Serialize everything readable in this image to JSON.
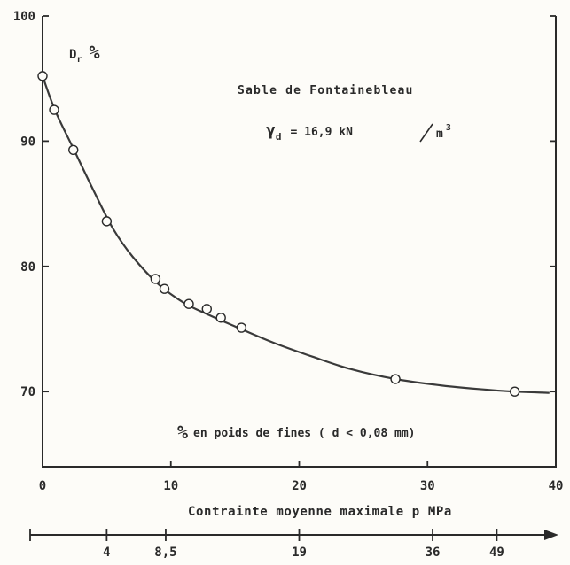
{
  "chart_data": {
    "type": "scatter",
    "ylabel": "D_r %",
    "xlabel": "% en poids de fines ( d < 0,08 mm)",
    "xlabel2": "Contrainte moyenne maximale  p  MPa",
    "annotation_title": "Sable de Fontainebleau",
    "annotation_formula": {
      "symbol": "γ",
      "sub": "d",
      "value": "= 16,9  kN",
      "unit": "m",
      "exp": "3"
    },
    "ylabel_main": "D",
    "ylabel_sub": "r",
    "ylabel_unit": "%",
    "xlabel_unit": "%",
    "xlabel_text": "en poids de fines ( d < 0,08 mm)",
    "xlim": [
      0,
      40
    ],
    "ylim": [
      64,
      100
    ],
    "x_ticks": [
      0,
      10,
      20,
      30,
      40
    ],
    "x_tick_labels": [
      "0",
      "10",
      "20",
      "30",
      "40"
    ],
    "y_ticks": [
      70,
      80,
      90,
      100
    ],
    "y_tick_labels": [
      "70",
      "80",
      "90",
      "100"
    ],
    "pressure_ticks": [
      {
        "x": 5.0,
        "label": "4"
      },
      {
        "x": 9.6,
        "label": "8,5"
      },
      {
        "x": 20.0,
        "label": "19"
      },
      {
        "x": 30.4,
        "label": "36"
      },
      {
        "x": 35.4,
        "label": "49"
      }
    ],
    "points": [
      {
        "x": 0.0,
        "y": 95.2
      },
      {
        "x": 0.9,
        "y": 92.5
      },
      {
        "x": 2.4,
        "y": 89.3
      },
      {
        "x": 5.0,
        "y": 83.6
      },
      {
        "x": 8.8,
        "y": 79.0
      },
      {
        "x": 9.5,
        "y": 78.2
      },
      {
        "x": 11.4,
        "y": 77.0
      },
      {
        "x": 12.8,
        "y": 76.6
      },
      {
        "x": 13.9,
        "y": 75.9
      },
      {
        "x": 15.5,
        "y": 75.1
      },
      {
        "x": 27.5,
        "y": 71.0
      },
      {
        "x": 36.8,
        "y": 70.0
      }
    ],
    "curve": [
      {
        "x": 0.0,
        "y": 95.2
      },
      {
        "x": 1.0,
        "y": 92.4
      },
      {
        "x": 2.5,
        "y": 89.2
      },
      {
        "x": 4.0,
        "y": 86.0
      },
      {
        "x": 5.5,
        "y": 83.0
      },
      {
        "x": 7.0,
        "y": 80.8
      },
      {
        "x": 9.0,
        "y": 78.6
      },
      {
        "x": 11.0,
        "y": 77.1
      },
      {
        "x": 13.0,
        "y": 76.1
      },
      {
        "x": 15.0,
        "y": 75.2
      },
      {
        "x": 18.0,
        "y": 73.9
      },
      {
        "x": 21.0,
        "y": 72.8
      },
      {
        "x": 24.0,
        "y": 71.8
      },
      {
        "x": 27.5,
        "y": 71.0
      },
      {
        "x": 31.0,
        "y": 70.5
      },
      {
        "x": 34.0,
        "y": 70.2
      },
      {
        "x": 36.8,
        "y": 70.0
      },
      {
        "x": 39.5,
        "y": 69.9
      }
    ],
    "grid": false
  }
}
